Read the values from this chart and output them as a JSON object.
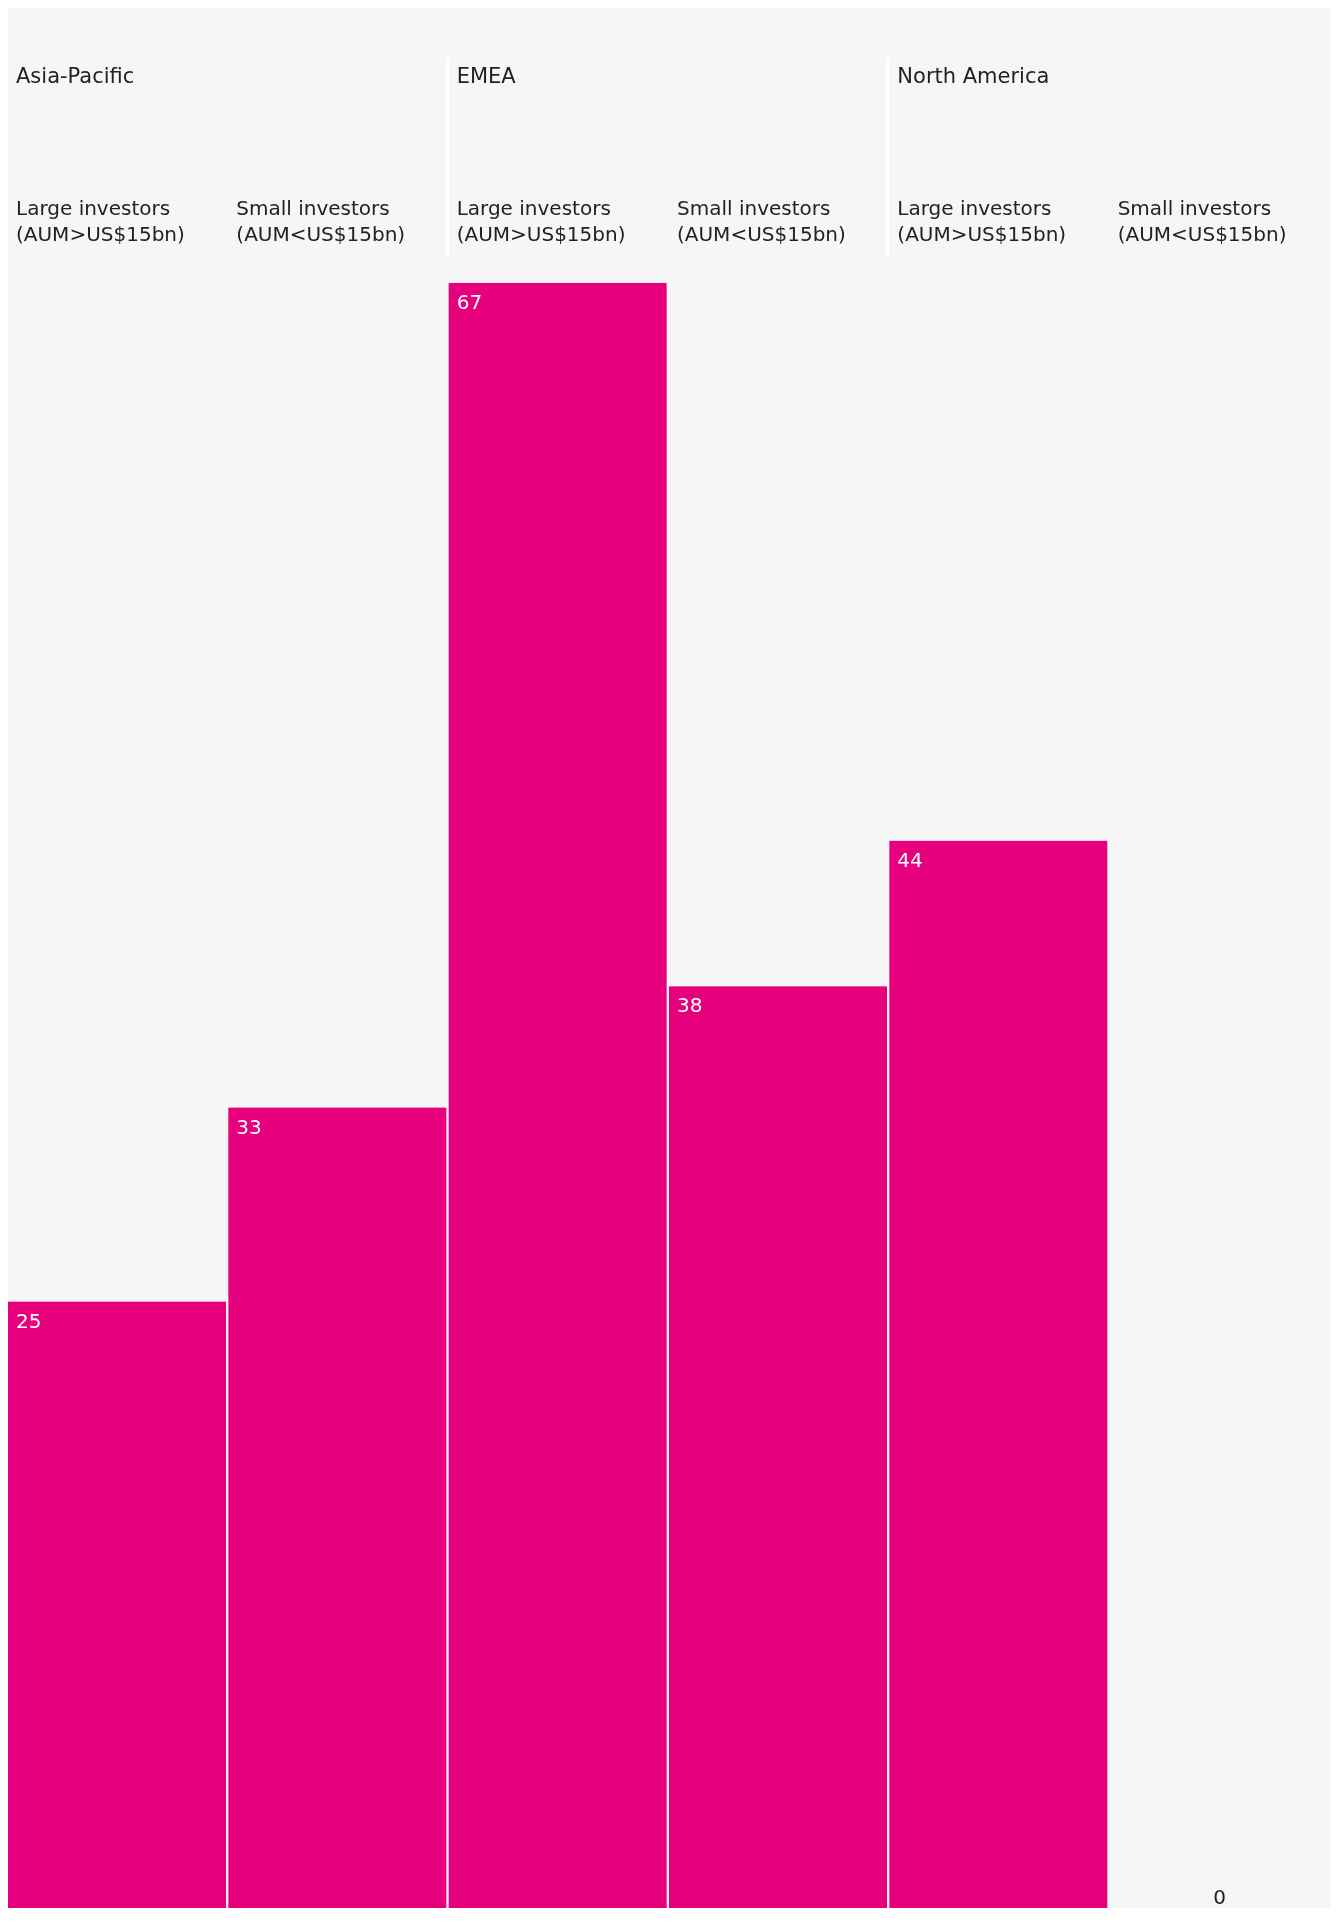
{
  "chart_data": {
    "type": "bar",
    "categories": [
      "Large investors (AUM>US$15bn)",
      "Small investors (AUM<US$15bn)",
      "Large investors (AUM>US$15bn)",
      "Small investors (AUM<US$15bn)",
      "Large investors (AUM>US$15bn)",
      "Small investors (AUM<US$15bn)"
    ],
    "annotations": [
      "Asia-Pacific",
      "EMEA",
      "North America"
    ],
    "series": [
      {
        "color": "#e6007e",
        "values": [
          25,
          33,
          67,
          38,
          44,
          0
        ]
      }
    ],
    "data_labels": true
  }
}
